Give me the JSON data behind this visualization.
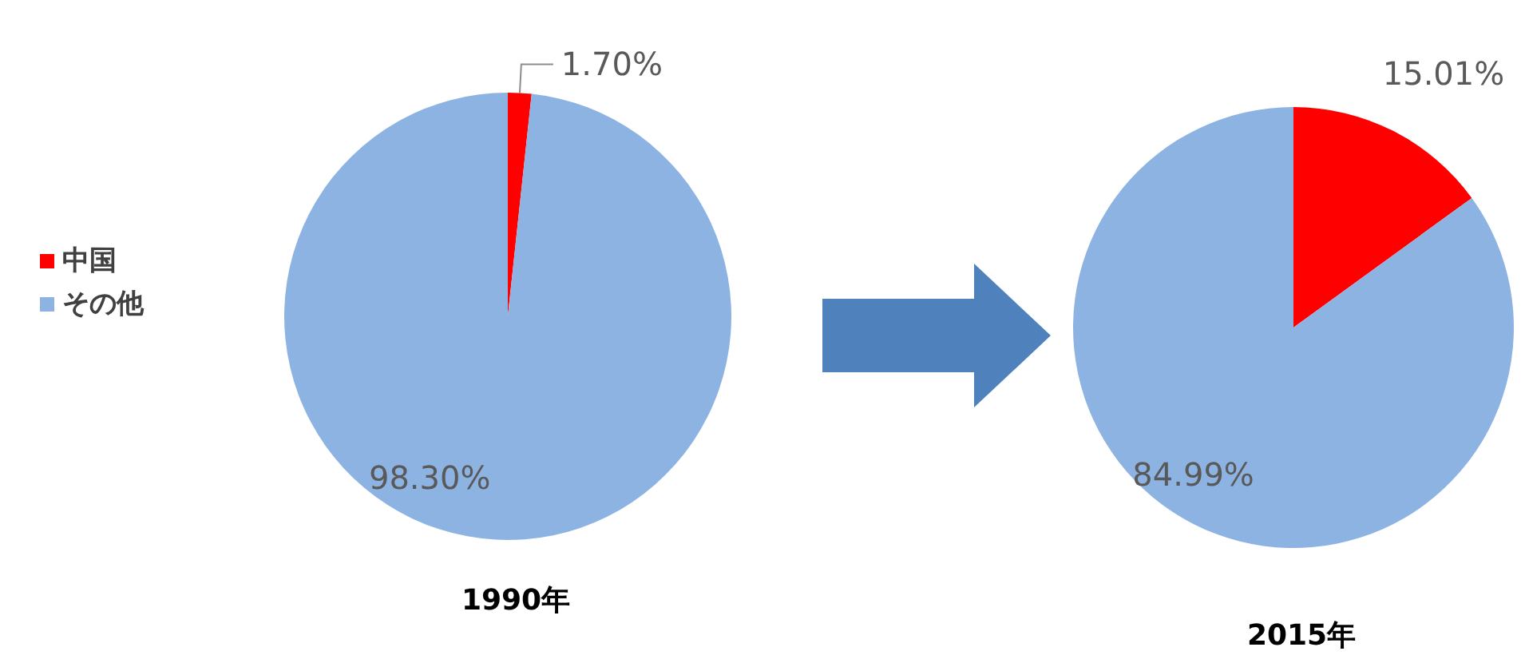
{
  "chart_data": {
    "type": "pie",
    "categories": [
      "中国",
      "その他"
    ],
    "colors": [
      "#ff0000",
      "#8db3e2"
    ],
    "legend": "left",
    "series": [
      {
        "name": "1990年",
        "values": [
          1.7,
          98.3
        ],
        "value_labels": [
          "1.70%",
          "98.30%"
        ]
      },
      {
        "name": "2015年",
        "values": [
          15.01,
          84.99
        ],
        "value_labels": [
          "15.01%",
          "84.99%"
        ]
      }
    ]
  }
}
